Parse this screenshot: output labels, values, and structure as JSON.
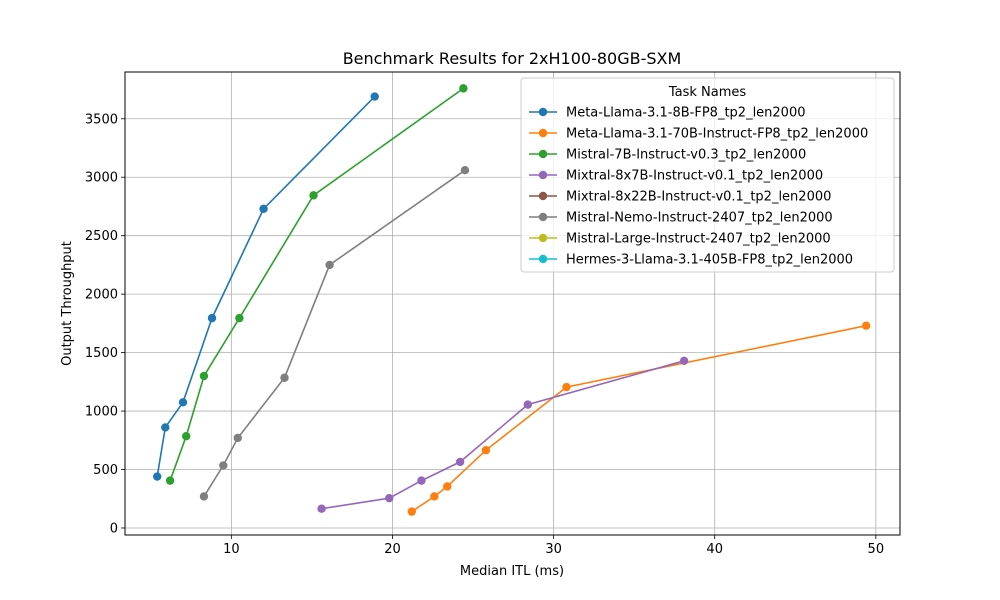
{
  "chart_data": {
    "type": "line",
    "title": "Benchmark Results for 2xH100-80GB-SXM",
    "xlabel": "Median ITL (ms)",
    "ylabel": "Output Throughput",
    "xlim": [
      3.4,
      51.5
    ],
    "ylim": [
      -60,
      3900
    ],
    "xticks": [
      10,
      20,
      30,
      40,
      50
    ],
    "yticks": [
      0,
      500,
      1000,
      1500,
      2000,
      2500,
      3000,
      3500
    ],
    "grid": true,
    "legend": {
      "title": "Task Names",
      "placement": "top-right"
    },
    "series": [
      {
        "name": "Meta-Llama-3.1-8B-FP8_tp2_len2000",
        "color": "#1f77b4",
        "points": [
          [
            5.4,
            440
          ],
          [
            5.9,
            860
          ],
          [
            7.0,
            1075
          ],
          [
            8.8,
            1795
          ],
          [
            12.0,
            2730
          ],
          [
            18.9,
            3690
          ]
        ]
      },
      {
        "name": "Meta-Llama-3.1-70B-Instruct-FP8_tp2_len2000",
        "color": "#ff7f0e",
        "points": [
          [
            21.2,
            140
          ],
          [
            22.6,
            270
          ],
          [
            23.4,
            355
          ],
          [
            25.8,
            665
          ],
          [
            30.8,
            1205
          ],
          [
            49.4,
            1730
          ]
        ]
      },
      {
        "name": "Mistral-7B-Instruct-v0.3_tp2_len2000",
        "color": "#2ca02c",
        "points": [
          [
            6.2,
            405
          ],
          [
            7.2,
            785
          ],
          [
            8.3,
            1300
          ],
          [
            10.5,
            1795
          ],
          [
            15.1,
            2845
          ],
          [
            24.4,
            3760
          ]
        ]
      },
      {
        "name": "Mixtral-8x7B-Instruct-v0.1_tp2_len2000",
        "color": "#9467bd",
        "points": [
          [
            15.6,
            165
          ],
          [
            19.8,
            255
          ],
          [
            21.8,
            405
          ],
          [
            24.2,
            565
          ],
          [
            28.4,
            1055
          ],
          [
            38.1,
            1430
          ]
        ]
      },
      {
        "name": "Mixtral-8x22B-Instruct-v0.1_tp2_len2000",
        "color": "#8c564b",
        "points": []
      },
      {
        "name": "Mistral-Nemo-Instruct-2407_tp2_len2000",
        "color": "#7f7f7f",
        "points": [
          [
            8.3,
            270
          ],
          [
            9.5,
            535
          ],
          [
            10.4,
            770
          ],
          [
            13.3,
            1285
          ],
          [
            16.1,
            2250
          ],
          [
            24.5,
            3060
          ]
        ]
      },
      {
        "name": "Mistral-Large-Instruct-2407_tp2_len2000",
        "color": "#bcbd22",
        "points": []
      },
      {
        "name": "Hermes-3-Llama-3.1-405B-FP8_tp2_len2000",
        "color": "#17becf",
        "points": []
      }
    ]
  }
}
